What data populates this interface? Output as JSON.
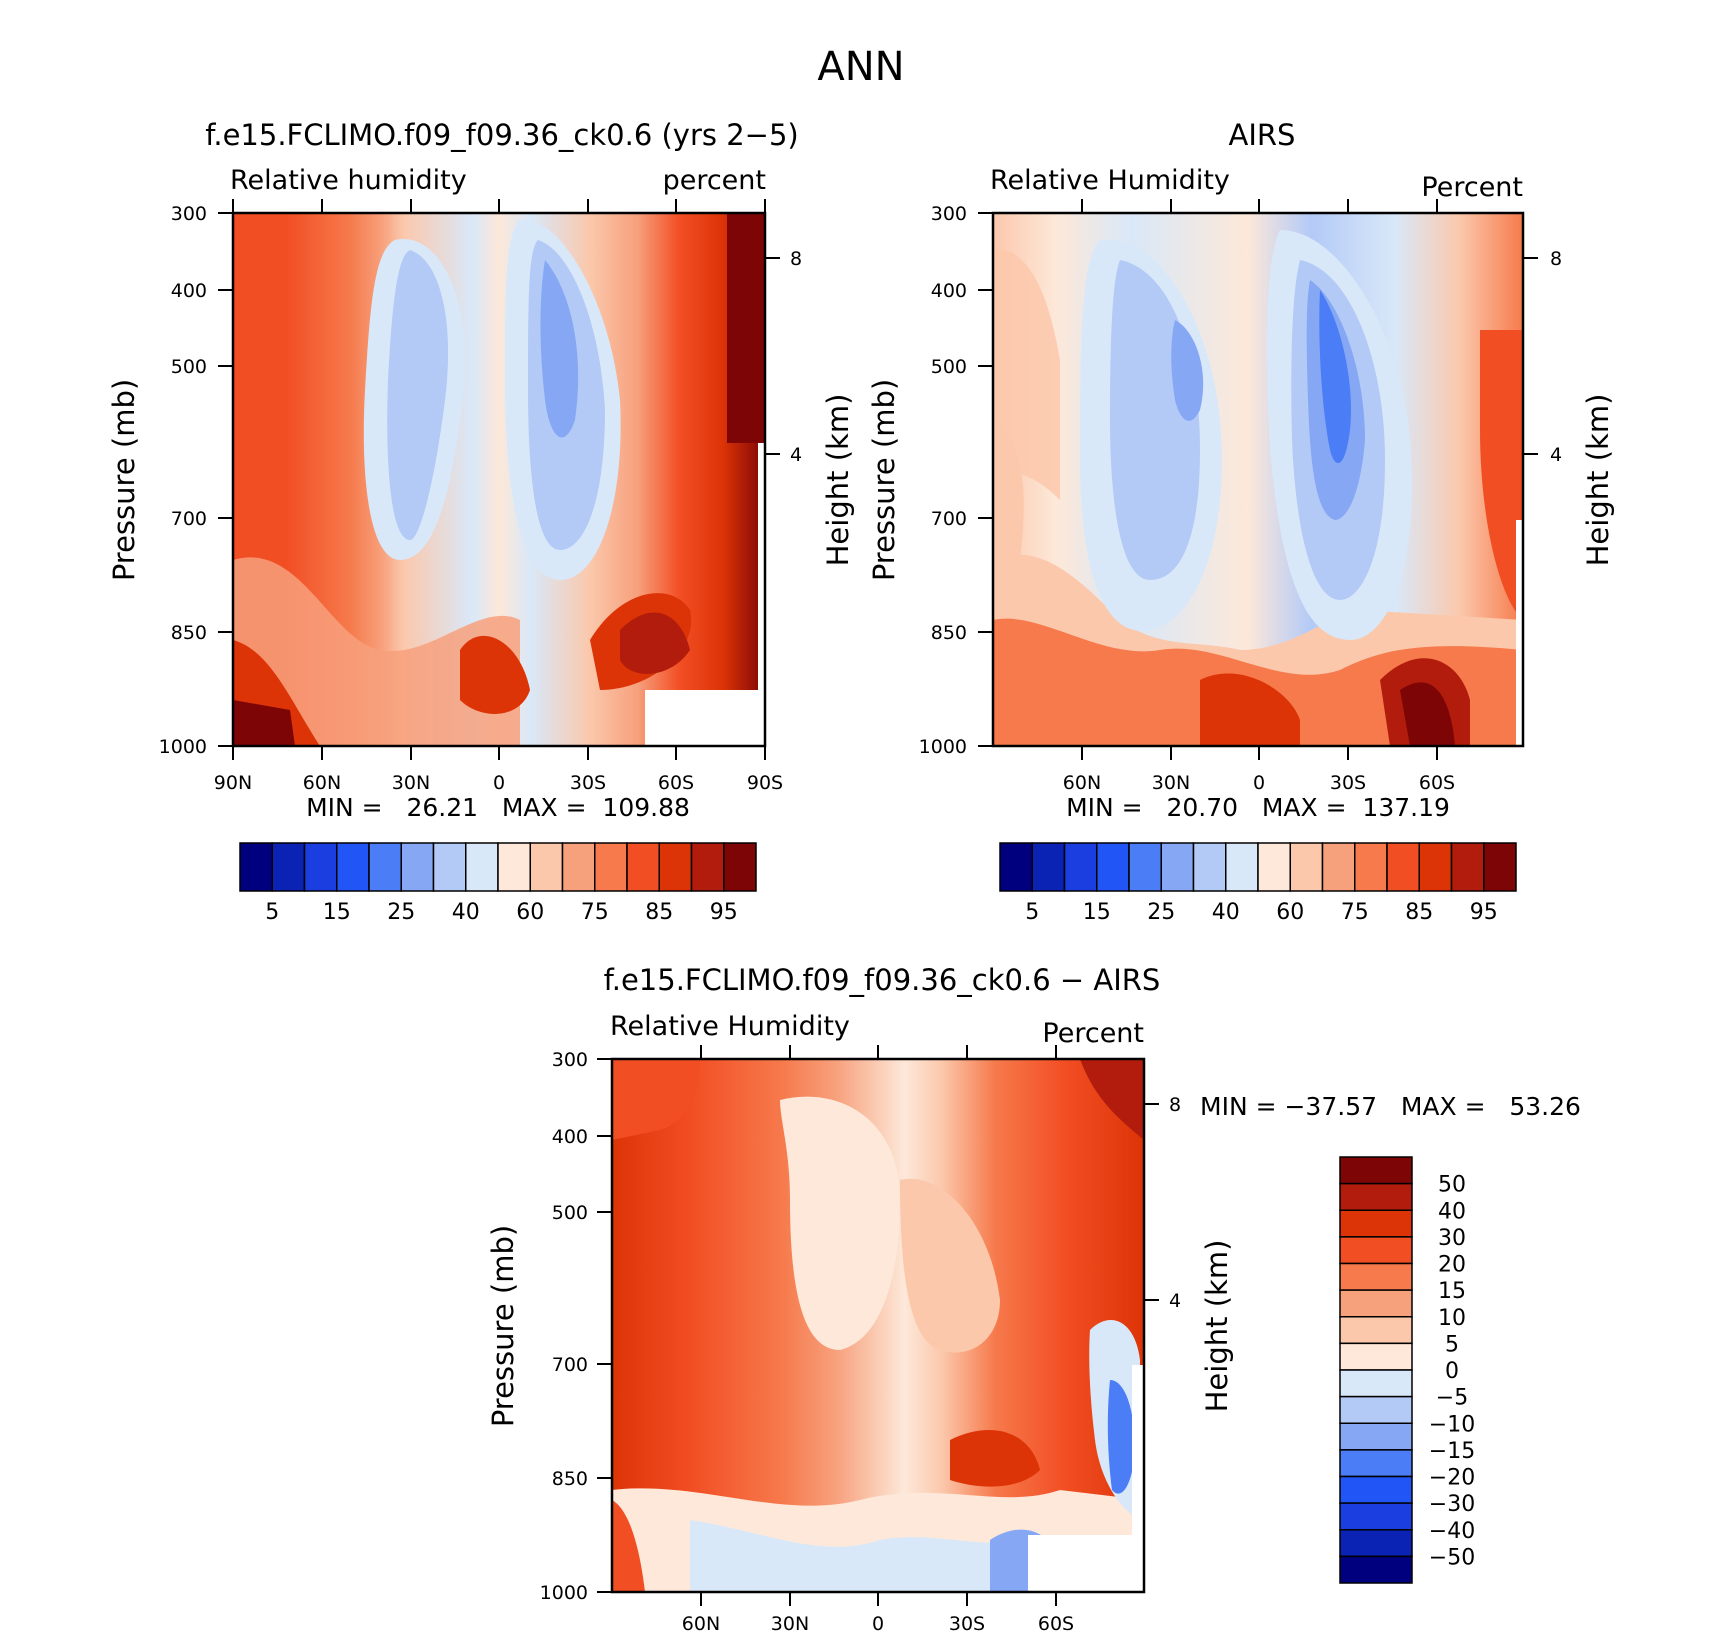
{
  "figure": {
    "title": "ANN"
  },
  "chart_data": [
    {
      "type": "contour",
      "panel": "model",
      "title": "f.e15.FCLIMO.f09_f09.36_ck0.6 (yrs 2−5)",
      "field_label": "Relative humidity",
      "units_label": "percent",
      "ylabel": "Pressure (mb)",
      "y2label": "Height (km)",
      "y_ticks": [
        "300",
        "400",
        "500",
        "700",
        "850",
        "1000"
      ],
      "y2_ticks": [
        "8",
        "4"
      ],
      "x_ticks": [
        "90N",
        "60N",
        "30N",
        "0",
        "30S",
        "60S",
        "90S"
      ],
      "minmax_text": "MIN =   26.21   MAX =  109.88",
      "min": 26.21,
      "max": 109.88,
      "colorbar_labels": [
        "5",
        "15",
        "25",
        "40",
        "60",
        "75",
        "85",
        "95"
      ]
    },
    {
      "type": "contour",
      "panel": "obs",
      "title": "AIRS",
      "field_label": "Relative Humidity",
      "units_label": "Percent",
      "ylabel": "Pressure (mb)",
      "y2label": "Height (km)",
      "y_ticks": [
        "300",
        "400",
        "500",
        "700",
        "850",
        "1000"
      ],
      "y2_ticks": [
        "8",
        "4"
      ],
      "x_ticks": [
        "60N",
        "30N",
        "0",
        "30S",
        "60S"
      ],
      "minmax_text": "MIN =   20.70   MAX =  137.19",
      "min": 20.7,
      "max": 137.19,
      "colorbar_labels": [
        "5",
        "15",
        "25",
        "40",
        "60",
        "75",
        "85",
        "95"
      ]
    },
    {
      "type": "contour",
      "panel": "diff",
      "title": "f.e15.FCLIMO.f09_f09.36_ck0.6 − AIRS",
      "field_label": "Relative Humidity",
      "units_label": "Percent",
      "ylabel": "Pressure (mb)",
      "y2label": "Height (km)",
      "y_ticks": [
        "300",
        "400",
        "500",
        "700",
        "850",
        "1000"
      ],
      "y2_ticks": [
        "8",
        "4"
      ],
      "x_ticks": [
        "60N",
        "30N",
        "0",
        "30S",
        "60S"
      ],
      "minmax_text": "MIN = −37.57   MAX =   53.26",
      "min": -37.57,
      "max": 53.26,
      "colorbar_labels": [
        "50",
        "40",
        "30",
        "20",
        "15",
        "10",
        "5",
        "0",
        "−5",
        "−10",
        "−15",
        "−20",
        "−30",
        "−40",
        "−50"
      ]
    }
  ],
  "colors": {
    "abs_scale": [
      "#00007f",
      "#0a23b4",
      "#1a3ee0",
      "#2255f6",
      "#4a7df6",
      "#86a8f4",
      "#b3caf7",
      "#d9e8f8",
      "#fde8d9",
      "#fbc8ac",
      "#f7a07c",
      "#f67a4c",
      "#f24e24",
      "#dd3407",
      "#b21c0c",
      "#7e0505"
    ],
    "diff_scale": [
      "#7e0505",
      "#b21c0c",
      "#dd3407",
      "#f24e24",
      "#f67a4c",
      "#f7a07c",
      "#fbc8ac",
      "#fde8d9",
      "#d9e8f8",
      "#b3caf7",
      "#86a8f4",
      "#4a7df6",
      "#2255f6",
      "#1a3ee0",
      "#0a23b4",
      "#00007f"
    ]
  }
}
